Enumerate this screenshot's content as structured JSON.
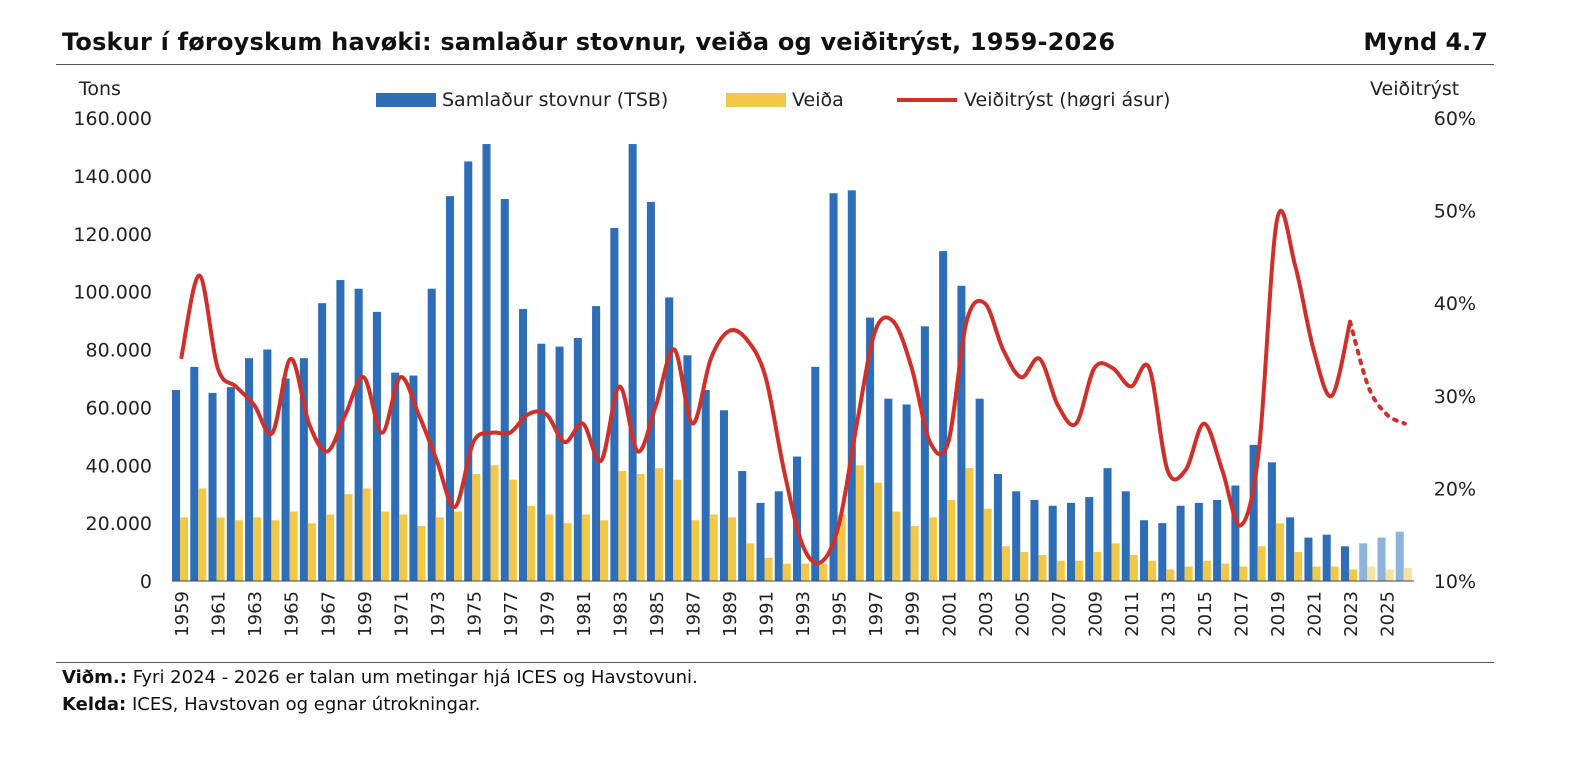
{
  "header": {
    "title": "Toskur í føroyskum havøki: samlaður stovnur, veiða og veiðitrýst, 1959-2026",
    "figure_label": "Mynd 4.7"
  },
  "footer": {
    "note_label": "Viðm.:",
    "note_text": "Fyri 2024 - 2026 er talan um metingar hjá ICES og Havstovuni.",
    "source_label": "Kelda:",
    "source_text": "ICES, Havstovan og egnar útrokningar."
  },
  "colors": {
    "tsb": "#2E6DB8",
    "tsb_estimate": "#8FB4DA",
    "catch": "#F2C84B",
    "catch_estimate": "#F6E2A3",
    "pressure": "#D0302A"
  },
  "chart_data": {
    "type": "bar",
    "title": "Toskur í føroyskum havøki: samlaður stovnur, veiða og veiðitrýst, 1959-2026",
    "ylabel": "Tons",
    "y2label": "Veiðitrýst",
    "ylim": [
      0,
      160000
    ],
    "y2lim": [
      0.1,
      0.6
    ],
    "yticks": [
      "0",
      "20.000",
      "40.000",
      "60.000",
      "80.000",
      "100.000",
      "120.000",
      "140.000",
      "160.000"
    ],
    "y2ticks": [
      "10%",
      "20%",
      "30%",
      "40%",
      "50%",
      "60%"
    ],
    "legend": {
      "tsb": "Samlaður stovnur (TSB)",
      "catch": "Veiða",
      "pressure": "Veiðitrýst (høgri ásur)"
    },
    "legend_position": "top",
    "estimate_from": 2024,
    "years": [
      1959,
      1960,
      1961,
      1962,
      1963,
      1964,
      1965,
      1966,
      1967,
      1968,
      1969,
      1970,
      1971,
      1972,
      1973,
      1974,
      1975,
      1976,
      1977,
      1978,
      1979,
      1980,
      1981,
      1982,
      1983,
      1984,
      1985,
      1986,
      1987,
      1988,
      1989,
      1990,
      1991,
      1992,
      1993,
      1994,
      1995,
      1996,
      1997,
      1998,
      1999,
      2000,
      2001,
      2002,
      2003,
      2004,
      2005,
      2006,
      2007,
      2008,
      2009,
      2010,
      2011,
      2012,
      2013,
      2014,
      2015,
      2016,
      2017,
      2018,
      2019,
      2020,
      2021,
      2022,
      2023,
      2024,
      2025,
      2026
    ],
    "xtick_labels": [
      "1959",
      "1961",
      "1963",
      "1965",
      "1967",
      "1969",
      "1971",
      "1973",
      "1975",
      "1977",
      "1979",
      "1981",
      "1983",
      "1985",
      "1987",
      "1989",
      "1991",
      "1993",
      "1995",
      "1997",
      "1999",
      "2001",
      "2003",
      "2005",
      "2007",
      "2009",
      "2011",
      "2013",
      "2015",
      "2017",
      "2019",
      "2021",
      "2023",
      "2025"
    ],
    "series": [
      {
        "name": "Samlaður stovnur (TSB)",
        "key": "tsb",
        "values": [
          66000,
          74000,
          65000,
          67000,
          77000,
          80000,
          70000,
          77000,
          96000,
          104000,
          101000,
          93000,
          72000,
          71000,
          101000,
          133000,
          145000,
          151000,
          132000,
          94000,
          82000,
          81000,
          84000,
          95000,
          122000,
          151000,
          131000,
          98000,
          78000,
          66000,
          59000,
          38000,
          27000,
          31000,
          43000,
          74000,
          134000,
          135000,
          91000,
          63000,
          61000,
          88000,
          114000,
          102000,
          63000,
          37000,
          31000,
          28000,
          26000,
          27000,
          29000,
          39000,
          31000,
          21000,
          20000,
          26000,
          27000,
          28000,
          33000,
          47000,
          41000,
          22000,
          15000,
          16000,
          12000,
          13000,
          15000,
          17000
        ]
      },
      {
        "name": "Veiða",
        "key": "catch",
        "values": [
          22000,
          32000,
          22000,
          21000,
          22000,
          21000,
          24000,
          20000,
          23000,
          30000,
          32000,
          24000,
          23000,
          19000,
          22000,
          24000,
          37000,
          40000,
          35000,
          26000,
          23000,
          20000,
          23000,
          21000,
          38000,
          37000,
          39000,
          35000,
          21000,
          23000,
          22000,
          13000,
          8000,
          6000,
          6000,
          6000,
          23000,
          40000,
          34000,
          24000,
          19000,
          22000,
          28000,
          39000,
          25000,
          12000,
          10000,
          9000,
          7000,
          7000,
          10000,
          13000,
          9000,
          7000,
          4000,
          5000,
          7000,
          6000,
          5000,
          12000,
          20000,
          10000,
          5000,
          5000,
          4000,
          5000,
          4000,
          4500
        ]
      },
      {
        "name": "Veiðitrýst (høgri ásur)",
        "key": "pressure",
        "axis": "right",
        "values": [
          0.34,
          0.43,
          0.33,
          0.31,
          0.29,
          0.26,
          0.34,
          0.27,
          0.24,
          0.28,
          0.32,
          0.26,
          0.32,
          0.28,
          0.23,
          0.18,
          0.25,
          0.26,
          0.26,
          0.28,
          0.28,
          0.25,
          0.27,
          0.23,
          0.31,
          0.24,
          0.29,
          0.35,
          0.27,
          0.34,
          0.37,
          0.36,
          0.32,
          0.22,
          0.14,
          0.12,
          0.16,
          0.27,
          0.37,
          0.38,
          0.33,
          0.25,
          0.25,
          0.38,
          0.4,
          0.35,
          0.32,
          0.34,
          0.29,
          0.27,
          0.33,
          0.33,
          0.31,
          0.33,
          0.22,
          0.22,
          0.27,
          0.22,
          0.16,
          0.24,
          0.49,
          0.44,
          0.35,
          0.3,
          0.38,
          0.31,
          0.28,
          0.27
        ]
      }
    ]
  }
}
